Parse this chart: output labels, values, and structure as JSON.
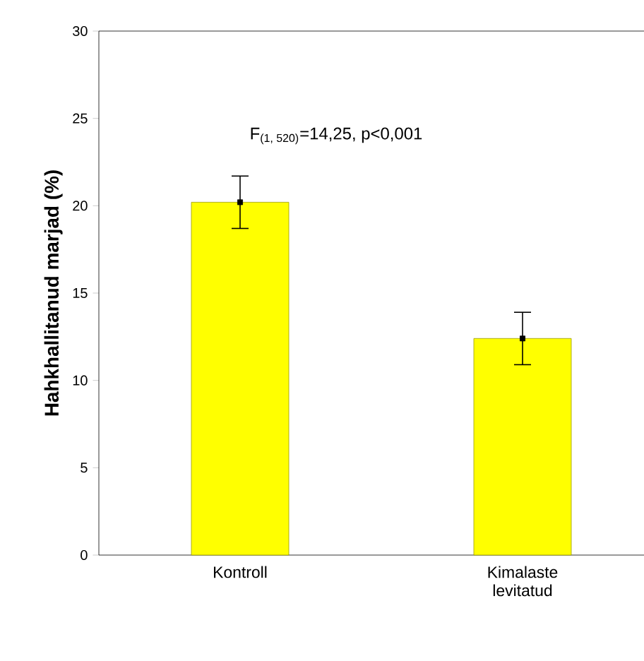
{
  "chart_data": {
    "type": "bar",
    "ylabel": "Hahkhallitanud marjad (%)",
    "categories": [
      "Kontroll",
      "Kimalaste levitatud"
    ],
    "series": [
      {
        "color": "#ffff00",
        "values": [
          20.2,
          12.4
        ]
      },
      {
        "type": "scatter",
        "color": "#000000",
        "x": [
          "Kontroll",
          "Kimalaste levitatud"
        ],
        "values": [
          20.2,
          12.4
        ],
        "errors": [
          1.5,
          1.5
        ],
        "marker": "square"
      }
    ],
    "ylim": [
      0,
      30
    ],
    "yticks": [
      0,
      5,
      10,
      15,
      20,
      25,
      30
    ],
    "annotations": [
      "F$_{(1, 520)}$=14,25, p<0,001"
    ]
  }
}
